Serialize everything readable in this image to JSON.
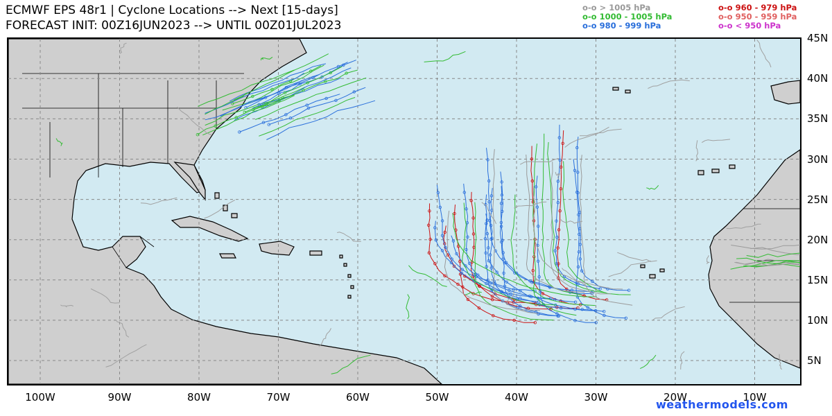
{
  "header": {
    "line1": "ECMWF EPS 48r1 | Cyclone Locations --> Next [15-days]",
    "line2": "FORECAST INIT: 00Z16JUN2023 --> UNTIL 00Z01JUL2023"
  },
  "legend": [
    {
      "text": "o-o > 1005 hPa",
      "color": "#999999"
    },
    {
      "text": "o-o 1000 - 1005 hPa",
      "color": "#33bb33"
    },
    {
      "text": "o-o 980 - 999 hPa",
      "color": "#2a6fdb"
    },
    {
      "text": "o-o 960 - 979 hPa",
      "color": "#cc1111"
    },
    {
      "text": "o-o 950 - 959 hPa",
      "color": "#e06060"
    },
    {
      "text": "o-o < 950 hPa",
      "color": "#cc33cc"
    }
  ],
  "map": {
    "lon_labels": [
      "100W",
      "90W",
      "80W",
      "70W",
      "60W",
      "50W",
      "40W",
      "30W",
      "20W",
      "10W"
    ],
    "lon_values": [
      -100,
      -90,
      -80,
      -70,
      -60,
      -50,
      -40,
      -30,
      -20,
      -10
    ],
    "lat_labels": [
      "45N",
      "40N",
      "35N",
      "30N",
      "25N",
      "20N",
      "15N",
      "10N",
      "5N"
    ],
    "lat_values": [
      45,
      40,
      35,
      30,
      25,
      20,
      15,
      10,
      5
    ],
    "ocean_color": "#d2eaf2",
    "land_color": "#cfcfcf",
    "gridlines": true
  },
  "watermark": "weathermodels.com"
}
